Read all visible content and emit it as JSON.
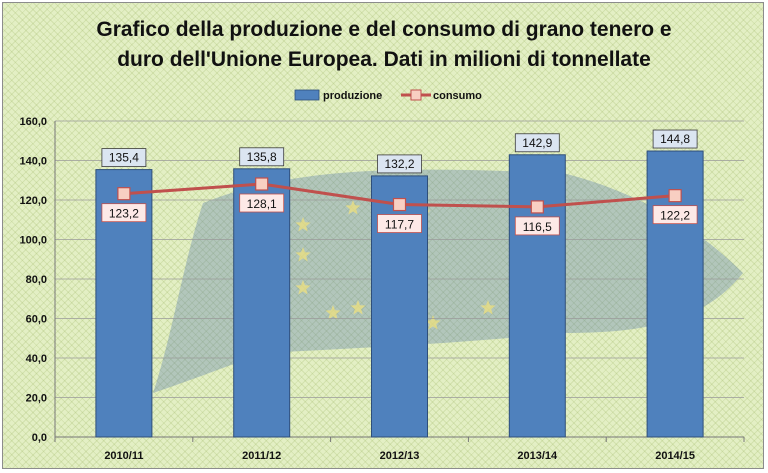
{
  "title_lines": [
    "Grafico della produzione e del consumo di grano tenero e",
    "duro  dell'Unione Europea. Dati in milioni di tonnellate"
  ],
  "colors": {
    "bar": "#4f81bd",
    "bar_label_bg": "#dbe5f1",
    "line": "#c0504d",
    "line_label_bg": "#fde9e7",
    "marker_fill": "#f8cfc2"
  },
  "chart_data": {
    "type": "bar",
    "categories": [
      "2010/11",
      "2011/12",
      "2012/13",
      "2013/14",
      "2014/15"
    ],
    "series": [
      {
        "name": "produzione",
        "type": "bar",
        "values": [
          135.4,
          135.8,
          132.2,
          142.9,
          144.8
        ],
        "labels": [
          "135,4",
          "135,8",
          "132,2",
          "142,9",
          "144,8"
        ]
      },
      {
        "name": "consumo",
        "type": "line",
        "values": [
          123.2,
          128.1,
          117.7,
          116.5,
          122.2
        ],
        "labels": [
          "123,2",
          "128,1",
          "117,7",
          "116,5",
          "122,2"
        ]
      }
    ],
    "ylim": [
      0,
      160
    ],
    "yticks": [
      0,
      20,
      40,
      60,
      80,
      100,
      120,
      140,
      160
    ],
    "ytick_labels": [
      "0,0",
      "20,0",
      "40,0",
      "60,0",
      "80,0",
      "100,0",
      "120,0",
      "140,0",
      "160,0"
    ],
    "grid": true,
    "legend_position": "top-center"
  }
}
